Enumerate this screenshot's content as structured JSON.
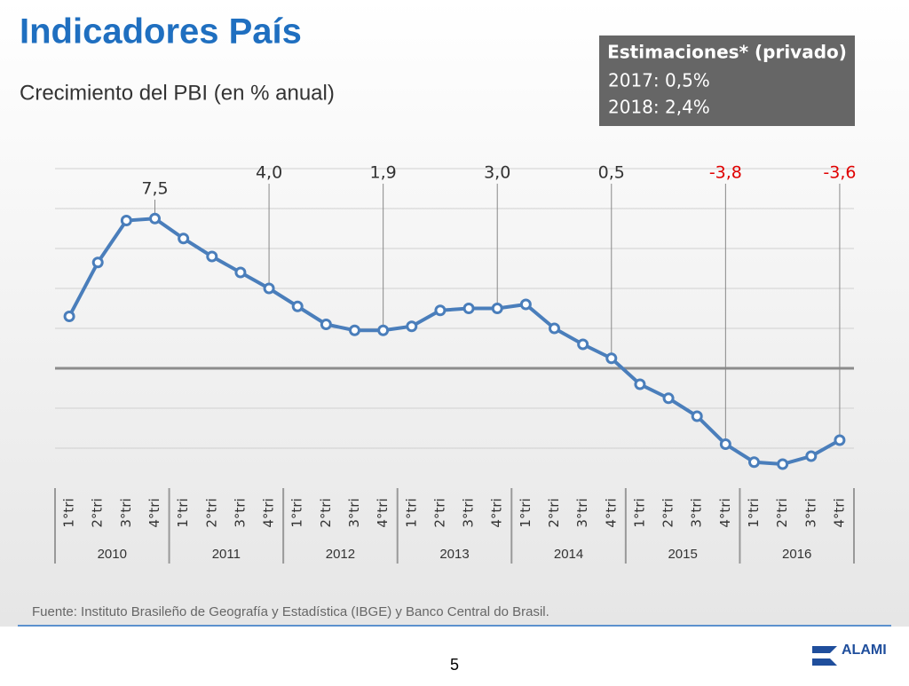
{
  "header": {
    "title": "Indicadores País",
    "subtitle": "Crecimiento del PBI (en % anual)"
  },
  "estimates": {
    "title": "Estimaciones* (privado)",
    "lines": [
      "2017: 0,5%",
      "2018: 2,4%"
    ]
  },
  "chart_data": {
    "type": "line",
    "categories": [
      "1°tri",
      "2°tri",
      "3°tri",
      "4°tri",
      "1°tri",
      "2°tri",
      "3°tri",
      "4°tri",
      "1°tri",
      "2°tri",
      "3°tri",
      "4°tri",
      "1°tri",
      "2°tri",
      "3°tri",
      "4°tri",
      "1°tri",
      "2°tri",
      "3°tri",
      "4°tri",
      "1°tri",
      "2°tri",
      "3°tri",
      "4°tri",
      "1°tri",
      "2°tri",
      "3°tri",
      "4°tri"
    ],
    "years": [
      "2010",
      "2011",
      "2012",
      "2013",
      "2014",
      "2015",
      "2016"
    ],
    "series": [
      {
        "name": "PBI",
        "color": "#4a7ebb",
        "values": [
          2.6,
          5.3,
          7.4,
          7.5,
          6.5,
          5.6,
          4.8,
          4.0,
          3.1,
          2.2,
          1.9,
          1.9,
          2.1,
          2.9,
          3.0,
          3.0,
          3.2,
          2.0,
          1.2,
          0.5,
          -0.8,
          -1.5,
          -2.4,
          -3.8,
          -4.7,
          -4.8,
          -4.4,
          -3.6
        ],
        "value_labels": [
          null,
          null,
          null,
          "7,5",
          null,
          null,
          null,
          "4,0",
          null,
          null,
          null,
          "1,9",
          null,
          null,
          null,
          "3,0",
          null,
          null,
          null,
          "0,5",
          null,
          null,
          null,
          "-3,8",
          null,
          null,
          null,
          "-3,6"
        ]
      }
    ],
    "ylim": [
      -6,
      10
    ],
    "yticks": [
      -4,
      -2,
      0,
      2,
      4,
      6,
      8,
      10
    ],
    "grid": true,
    "negative_label_color": "#e00000"
  },
  "footer": {
    "source": "Fuente: Instituto Brasileño de Geografía y Estadística (IBGE) y Banco Central do Brasil.",
    "page": "5",
    "logo": "ALAMI"
  }
}
